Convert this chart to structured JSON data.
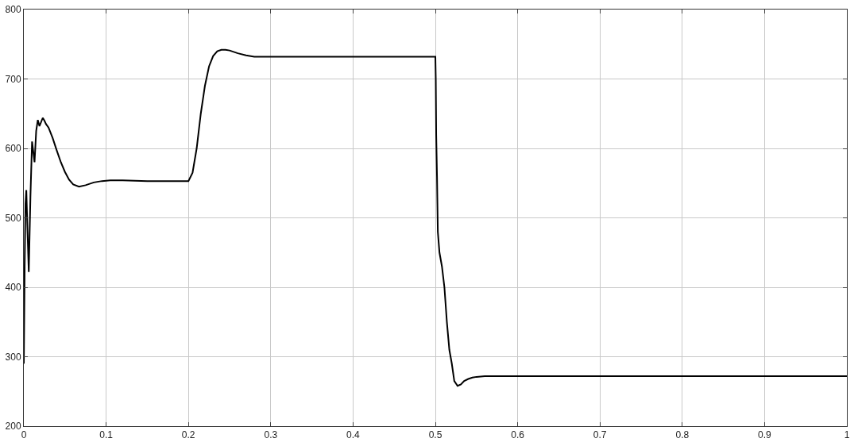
{
  "chart_data": {
    "type": "line",
    "x": [
      0,
      0.001,
      0.002,
      0.003,
      0.0045,
      0.006,
      0.008,
      0.01,
      0.0115,
      0.013,
      0.015,
      0.017,
      0.019,
      0.021,
      0.023,
      0.025,
      0.027,
      0.03,
      0.035,
      0.04,
      0.045,
      0.05,
      0.055,
      0.06,
      0.067,
      0.075,
      0.085,
      0.095,
      0.105,
      0.12,
      0.15,
      0.18,
      0.2,
      0.205,
      0.21,
      0.215,
      0.22,
      0.225,
      0.23,
      0.235,
      0.24,
      0.245,
      0.25,
      0.26,
      0.27,
      0.28,
      0.3,
      0.4,
      0.5,
      0.5005,
      0.501,
      0.502,
      0.503,
      0.505,
      0.508,
      0.511,
      0.514,
      0.517,
      0.52,
      0.523,
      0.527,
      0.531,
      0.535,
      0.54,
      0.545,
      0.55,
      0.56,
      0.6,
      0.8,
      1
    ],
    "series": [
      {
        "color": "#000000",
        "values": [
          290,
          430,
          520,
          540,
          480,
          422,
          530,
          610,
          595,
          580,
          625,
          641,
          632,
          638,
          644,
          640,
          635,
          630,
          615,
          597,
          580,
          566,
          555,
          548,
          545,
          547,
          551,
          553,
          554,
          554,
          553,
          553,
          553,
          565,
          600,
          650,
          690,
          718,
          733,
          740,
          742,
          742,
          741,
          737,
          734,
          732,
          732,
          732,
          732,
          700,
          620,
          560,
          480,
          450,
          430,
          400,
          350,
          310,
          290,
          265,
          258,
          260,
          265,
          268,
          270,
          271,
          272,
          272,
          272,
          272
        ]
      }
    ],
    "xlim": [
      0,
      1
    ],
    "ylim": [
      200,
      800
    ],
    "xticks": [
      0,
      0.1,
      0.2,
      0.3,
      0.4,
      0.5,
      0.6,
      0.7,
      0.8,
      0.9,
      1
    ],
    "yticks": [
      200,
      300,
      400,
      500,
      600,
      700,
      800
    ],
    "grid": true,
    "marker": "none",
    "line_style": "solid"
  }
}
